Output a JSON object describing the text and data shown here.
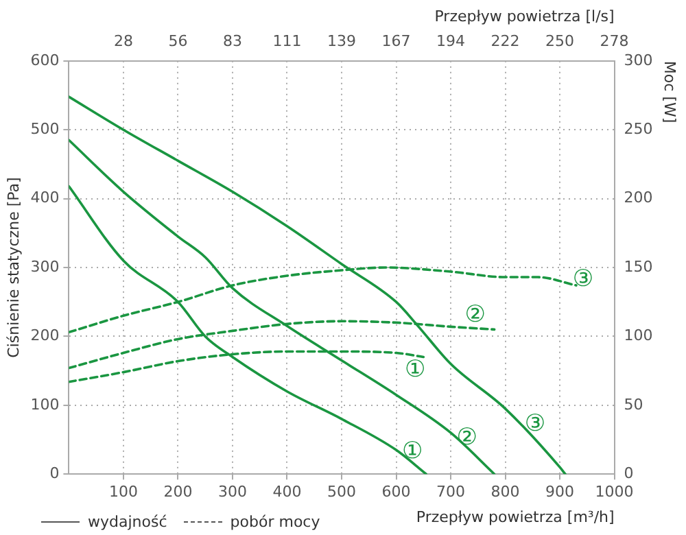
{
  "chart_data": {
    "type": "line",
    "xlabel": "Przepływ powietrza [m³/h]",
    "ylabel": "Ciśnienie statyczne [Pa]",
    "y2label": "Moc [W]",
    "x2label": "Przepływ powietrza [l/s]",
    "xlim": [
      0,
      1000
    ],
    "xticks": [
      100,
      200,
      300,
      400,
      500,
      600,
      700,
      800,
      900,
      1000
    ],
    "x2lim": [
      0,
      277.78
    ],
    "x2ticks": [
      {
        "value": 27.78,
        "label": "28"
      },
      {
        "value": 55.56,
        "label": "56"
      },
      {
        "value": 83.33,
        "label": "83"
      },
      {
        "value": 111.11,
        "label": "111"
      },
      {
        "value": 138.89,
        "label": "139"
      },
      {
        "value": 166.67,
        "label": "167"
      },
      {
        "value": 194.44,
        "label": "194"
      },
      {
        "value": 222.22,
        "label": "222"
      },
      {
        "value": 250,
        "label": "250"
      },
      {
        "value": 277.78,
        "label": "278"
      }
    ],
    "ylim": [
      0,
      600
    ],
    "yticks": [
      0,
      100,
      200,
      300,
      400,
      500,
      600
    ],
    "y2lim": [
      0,
      300
    ],
    "y2ticks": [
      0,
      50,
      100,
      150,
      200,
      250,
      300
    ],
    "grid": true,
    "marker": "none",
    "series": [
      {
        "color": "#1a9641",
        "line_style": "solid",
        "x": [
          0,
          100,
          200,
          300,
          400,
          500,
          600,
          640,
          700,
          800,
          900,
          910
        ],
        "values": [
          548,
          500,
          455,
          410,
          360,
          305,
          250,
          215,
          160,
          95,
          10,
          0
        ]
      },
      {
        "color": "#1a9641",
        "line_style": "solid",
        "x": [
          0,
          100,
          200,
          250,
          300,
          400,
          500,
          600,
          700,
          780
        ],
        "values": [
          485,
          410,
          345,
          315,
          270,
          215,
          165,
          115,
          60,
          0
        ]
      },
      {
        "color": "#1a9641",
        "line_style": "solid",
        "x": [
          0,
          100,
          200,
          250,
          300,
          400,
          500,
          600,
          655
        ],
        "values": [
          418,
          310,
          250,
          200,
          170,
          120,
          80,
          35,
          0
        ]
      },
      {
        "color": "#1a9641",
        "line_style": "dashed",
        "axis": "y2",
        "x": [
          0,
          100,
          200,
          300,
          400,
          500,
          580,
          700,
          800,
          860,
          930
        ],
        "values": [
          103,
          115,
          125,
          137,
          144,
          148,
          150,
          147,
          143,
          143,
          137
        ]
      },
      {
        "color": "#1a9641",
        "line_style": "dashed",
        "axis": "y2",
        "x": [
          0,
          100,
          200,
          300,
          400,
          500,
          600,
          700,
          780
        ],
        "values": [
          77,
          88,
          98,
          104,
          109,
          111,
          110,
          107,
          105
        ]
      },
      {
        "color": "#1a9641",
        "line_style": "dashed",
        "axis": "y2",
        "x": [
          0,
          100,
          200,
          300,
          400,
          500,
          600,
          650
        ],
        "values": [
          67,
          74,
          82,
          87,
          89,
          89,
          88,
          85
        ]
      }
    ],
    "annotations": [
      "wydajność",
      "pobór mocy",
      "③",
      "②",
      "①",
      "③",
      "②",
      "①"
    ]
  }
}
